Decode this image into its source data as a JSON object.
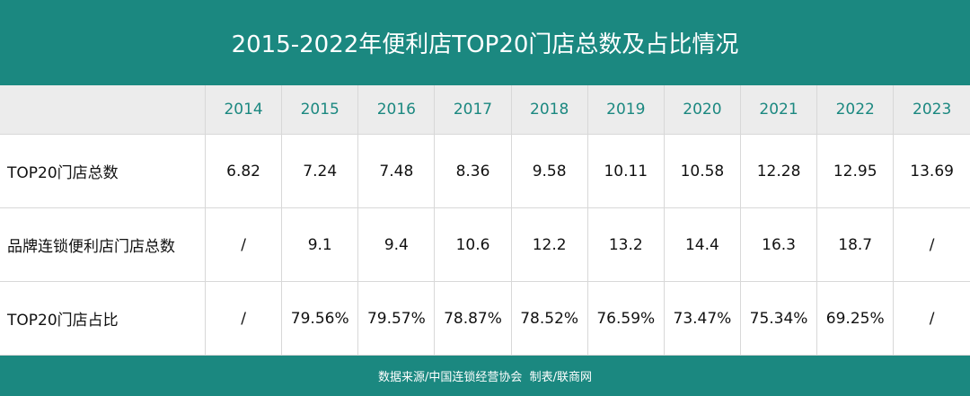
{
  "header": {
    "title": "2015-2022年便利店TOP20门店总数及占比情况"
  },
  "table": {
    "columns": [
      "2014",
      "2015",
      "2016",
      "2017",
      "2018",
      "2019",
      "2020",
      "2021",
      "2022",
      "2023"
    ],
    "rows": [
      {
        "label": "TOP20门店总数",
        "cells": [
          "6.82",
          "7.24",
          "7.48",
          "8.36",
          "9.58",
          "10.11",
          "10.58",
          "12.28",
          "12.95",
          "13.69"
        ]
      },
      {
        "label": "品牌连锁便利店门店总数",
        "cells": [
          "/",
          "9.1",
          "9.4",
          "10.6",
          "12.2",
          "13.2",
          "14.4",
          "16.3",
          "18.7",
          "/"
        ]
      },
      {
        "label": "TOP20门店占比",
        "cells": [
          "/",
          "79.56%",
          "79.57%",
          "78.87%",
          "78.52%",
          "76.59%",
          "73.47%",
          "75.34%",
          "69.25%",
          "/"
        ]
      }
    ]
  },
  "footer": {
    "source": "数据来源/中国连锁经营协会  制表/联商网"
  }
}
